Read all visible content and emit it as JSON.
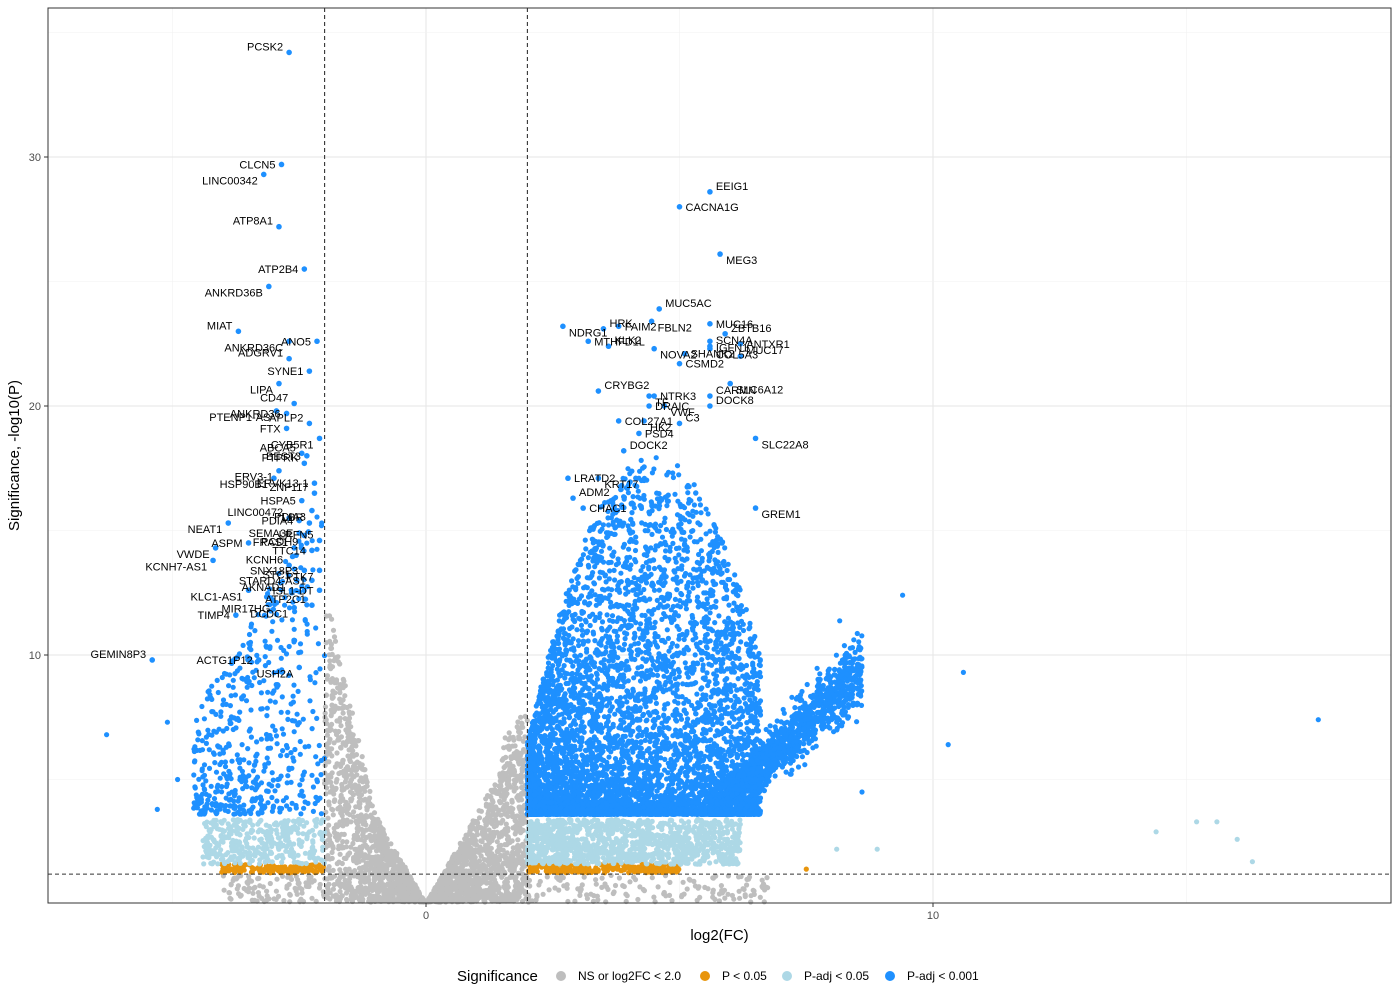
{
  "chart_data": {
    "type": "scatter",
    "xlabel": "log2(FC)",
    "ylabel": "Significance, -log10(P)",
    "xlim": [
      -7.5,
      19
    ],
    "ylim": [
      0,
      36
    ],
    "x_ticks": [
      0,
      10
    ],
    "y_ticks": [
      10,
      20,
      30
    ],
    "grid": true,
    "fc_cutoff": 2.0,
    "p_cutoff_y": 1.2,
    "legend": {
      "title": "Significance",
      "position": "bottom",
      "entries": [
        {
          "key": "ns",
          "label": "NS or log2FC < 2.0",
          "color": "#bebebe"
        },
        {
          "key": "p",
          "label": "P < 0.05",
          "color": "#e8950c"
        },
        {
          "key": "padj05",
          "label": "P-adj < 0.05",
          "color": "#add8e6"
        },
        {
          "key": "padj001",
          "label": "P-adj < 0.001",
          "color": "#1e90ff"
        }
      ]
    },
    "background_groups": {
      "ns": {
        "color": "#bebebe"
      },
      "p": {
        "color": "#e8950c"
      },
      "padj05": {
        "color": "#add8e6"
      },
      "padj001": {
        "color": "#1e90ff"
      }
    },
    "outliers": [
      {
        "x": -6.3,
        "y": 6.8
      },
      {
        "x": -5.3,
        "y": 3.8
      },
      {
        "x": -5.1,
        "y": 7.3
      },
      {
        "x": -4.9,
        "y": 5.0
      },
      {
        "x": 8.6,
        "y": 4.5
      },
      {
        "x": 8.5,
        "y": 8.0
      },
      {
        "x": 9.4,
        "y": 12.4
      },
      {
        "x": 10.3,
        "y": 6.4
      },
      {
        "x": 10.6,
        "y": 9.3
      },
      {
        "x": 17.6,
        "y": 7.4
      },
      {
        "x": 14.4,
        "y": 2.9
      },
      {
        "x": 15.2,
        "y": 3.3
      },
      {
        "x": 15.6,
        "y": 3.3
      },
      {
        "x": 16.0,
        "y": 2.6
      },
      {
        "x": 16.3,
        "y": 1.7
      },
      {
        "x": 8.1,
        "y": 2.2
      },
      {
        "x": 8.9,
        "y": 2.2
      },
      {
        "x": 7.5,
        "y": 1.4
      }
    ],
    "genes": [
      {
        "name": "PCSK2",
        "x": -2.7,
        "y": 34.2
      },
      {
        "name": "CLCN5",
        "x": -2.85,
        "y": 29.7
      },
      {
        "name": "LINC00342",
        "x": -3.2,
        "y": 29.3
      },
      {
        "name": "ATP8A1",
        "x": -2.9,
        "y": 27.2
      },
      {
        "name": "ATP2B4",
        "x": -2.4,
        "y": 25.5
      },
      {
        "name": "ANKRD36B",
        "x": -3.1,
        "y": 24.8
      },
      {
        "name": "MIAT",
        "x": -3.7,
        "y": 23.0
      },
      {
        "name": "ANO5",
        "x": -2.15,
        "y": 22.6
      },
      {
        "name": "ANKRD36C",
        "x": -2.7,
        "y": 22.6
      },
      {
        "name": "ADGRV1",
        "x": -2.7,
        "y": 21.9
      },
      {
        "name": "SYNE1",
        "x": -2.3,
        "y": 21.4
      },
      {
        "name": "LIPA",
        "x": -2.9,
        "y": 20.9
      },
      {
        "name": "CD47",
        "x": -2.6,
        "y": 20.1
      },
      {
        "name": "ANKRD36",
        "x": -2.75,
        "y": 19.7
      },
      {
        "name": "PTENP1-AS",
        "x": -2.95,
        "y": 19.8
      },
      {
        "name": "APLP2",
        "x": -2.3,
        "y": 19.3
      },
      {
        "name": "FTX",
        "x": -2.75,
        "y": 19.1
      },
      {
        "name": "CYB5R1",
        "x": -2.1,
        "y": 18.7
      },
      {
        "name": "ABCA5",
        "x": -2.45,
        "y": 18.1
      },
      {
        "name": "BEST3",
        "x": -2.35,
        "y": 18.0
      },
      {
        "name": "ERV3-1",
        "x": -2.9,
        "y": 17.4
      },
      {
        "name": "PTPRK",
        "x": -2.4,
        "y": 17.7
      },
      {
        "name": "ERVK13-1",
        "x": -2.2,
        "y": 16.9
      },
      {
        "name": "HSP90B1",
        "x": -3.0,
        "y": 17.1
      },
      {
        "name": "ZNF117",
        "x": -2.2,
        "y": 16.5
      },
      {
        "name": "HSPA5",
        "x": -2.45,
        "y": 16.2
      },
      {
        "name": "PDIA3",
        "x": -2.25,
        "y": 15.8
      },
      {
        "name": "LINC00472",
        "x": -2.7,
        "y": 15.5
      },
      {
        "name": "PDIA4",
        "x": -2.5,
        "y": 15.4
      },
      {
        "name": "NEAT1",
        "x": -3.9,
        "y": 15.3
      },
      {
        "name": "LBR",
        "x": -2.3,
        "y": 15.3
      },
      {
        "name": "SEMA3E",
        "x": -2.5,
        "y": 14.9
      },
      {
        "name": "PCDH9",
        "x": -2.4,
        "y": 14.8
      },
      {
        "name": "LRFN5",
        "x": -2.1,
        "y": 14.6
      },
      {
        "name": "ASPM",
        "x": -3.5,
        "y": 14.5
      },
      {
        "name": "VWDE",
        "x": -4.15,
        "y": 14.3
      },
      {
        "name": "FRAS1",
        "x": -2.6,
        "y": 14.3
      },
      {
        "name": "TTC14",
        "x": -2.25,
        "y": 14.2
      },
      {
        "name": "KCNH7-AS1",
        "x": -4.2,
        "y": 13.8
      },
      {
        "name": "KCNH6",
        "x": -2.7,
        "y": 13.6
      },
      {
        "name": "SNX18P3",
        "x": -2.4,
        "y": 13.4
      },
      {
        "name": "PTK7",
        "x": -2.1,
        "y": 13.4
      },
      {
        "name": "STC1",
        "x": -2.55,
        "y": 13.0
      },
      {
        "name": "STARD4-AS1",
        "x": -2.25,
        "y": 13.0
      },
      {
        "name": "KLC1-AS1",
        "x": -3.5,
        "y": 12.6
      },
      {
        "name": "AKNAD1",
        "x": -2.65,
        "y": 12.5
      },
      {
        "name": "ISL1-DT",
        "x": -2.1,
        "y": 12.6
      },
      {
        "name": "MIR17HG",
        "x": -2.95,
        "y": 12.1
      },
      {
        "name": "ATP2C1",
        "x": -2.25,
        "y": 12.0
      },
      {
        "name": "TIMP4",
        "x": -3.75,
        "y": 11.6
      },
      {
        "name": "DCDC1",
        "x": -2.6,
        "y": 11.9
      },
      {
        "name": "GEMIN8P3",
        "x": -5.4,
        "y": 9.8
      },
      {
        "name": "ACTG1P12",
        "x": -3.3,
        "y": 9.8
      },
      {
        "name": "USH2A",
        "x": -2.5,
        "y": 9.5
      },
      {
        "name": "EEIG1",
        "x": 5.6,
        "y": 28.6
      },
      {
        "name": "CACNA1G",
        "x": 5.0,
        "y": 28.0
      },
      {
        "name": "MEG3",
        "x": 5.8,
        "y": 26.1
      },
      {
        "name": "MUC5AC",
        "x": 4.6,
        "y": 23.9
      },
      {
        "name": "MUC16",
        "x": 5.6,
        "y": 23.3
      },
      {
        "name": "NDRG1",
        "x": 2.7,
        "y": 23.2
      },
      {
        "name": "HRK",
        "x": 3.5,
        "y": 23.1
      },
      {
        "name": "FAIM2",
        "x": 3.8,
        "y": 23.2
      },
      {
        "name": "FBLN2",
        "x": 4.45,
        "y": 23.4
      },
      {
        "name": "ZBTB16",
        "x": 5.9,
        "y": 22.9
      },
      {
        "name": "MTHFD1L",
        "x": 3.2,
        "y": 22.6
      },
      {
        "name": "IGFN1",
        "x": 5.6,
        "y": 22.6
      },
      {
        "name": "SCN4A",
        "x": 5.6,
        "y": 22.4
      },
      {
        "name": "ANTXR1",
        "x": 6.2,
        "y": 22.5
      },
      {
        "name": "NOVA2",
        "x": 4.5,
        "y": 22.3
      },
      {
        "name": "KLK2",
        "x": 3.6,
        "y": 22.4
      },
      {
        "name": "SHANK2",
        "x": 5.1,
        "y": 22.1
      },
      {
        "name": "COL5A3",
        "x": 5.6,
        "y": 22.3
      },
      {
        "name": "MUC17",
        "x": 6.2,
        "y": 22.0
      },
      {
        "name": "CSMD2",
        "x": 5.0,
        "y": 21.7
      },
      {
        "name": "SLC6A12",
        "x": 6.0,
        "y": 20.9
      },
      {
        "name": "CRYBG2",
        "x": 3.4,
        "y": 20.6
      },
      {
        "name": "NTRK3",
        "x": 4.5,
        "y": 20.4
      },
      {
        "name": "TF",
        "x": 4.4,
        "y": 20.4
      },
      {
        "name": "CARMN",
        "x": 5.6,
        "y": 20.4
      },
      {
        "name": "DRAIC",
        "x": 4.4,
        "y": 20.0
      },
      {
        "name": "VWF",
        "x": 4.7,
        "y": 20.0
      },
      {
        "name": "DOCK8",
        "x": 5.6,
        "y": 20.0
      },
      {
        "name": "COL27A1",
        "x": 3.8,
        "y": 19.4
      },
      {
        "name": "HK2",
        "x": 4.3,
        "y": 19.4
      },
      {
        "name": "C3",
        "x": 5.0,
        "y": 19.3
      },
      {
        "name": "PSD4",
        "x": 4.2,
        "y": 18.9
      },
      {
        "name": "SLC22A8",
        "x": 6.5,
        "y": 18.7
      },
      {
        "name": "DOCK2",
        "x": 3.9,
        "y": 18.2
      },
      {
        "name": "LRATD2",
        "x": 2.8,
        "y": 17.1
      },
      {
        "name": "KRT17",
        "x": 3.4,
        "y": 17.1
      },
      {
        "name": "ADM2",
        "x": 2.9,
        "y": 16.3
      },
      {
        "name": "CHAC1",
        "x": 3.1,
        "y": 15.9
      },
      {
        "name": "GREM1",
        "x": 6.5,
        "y": 15.9
      }
    ]
  }
}
